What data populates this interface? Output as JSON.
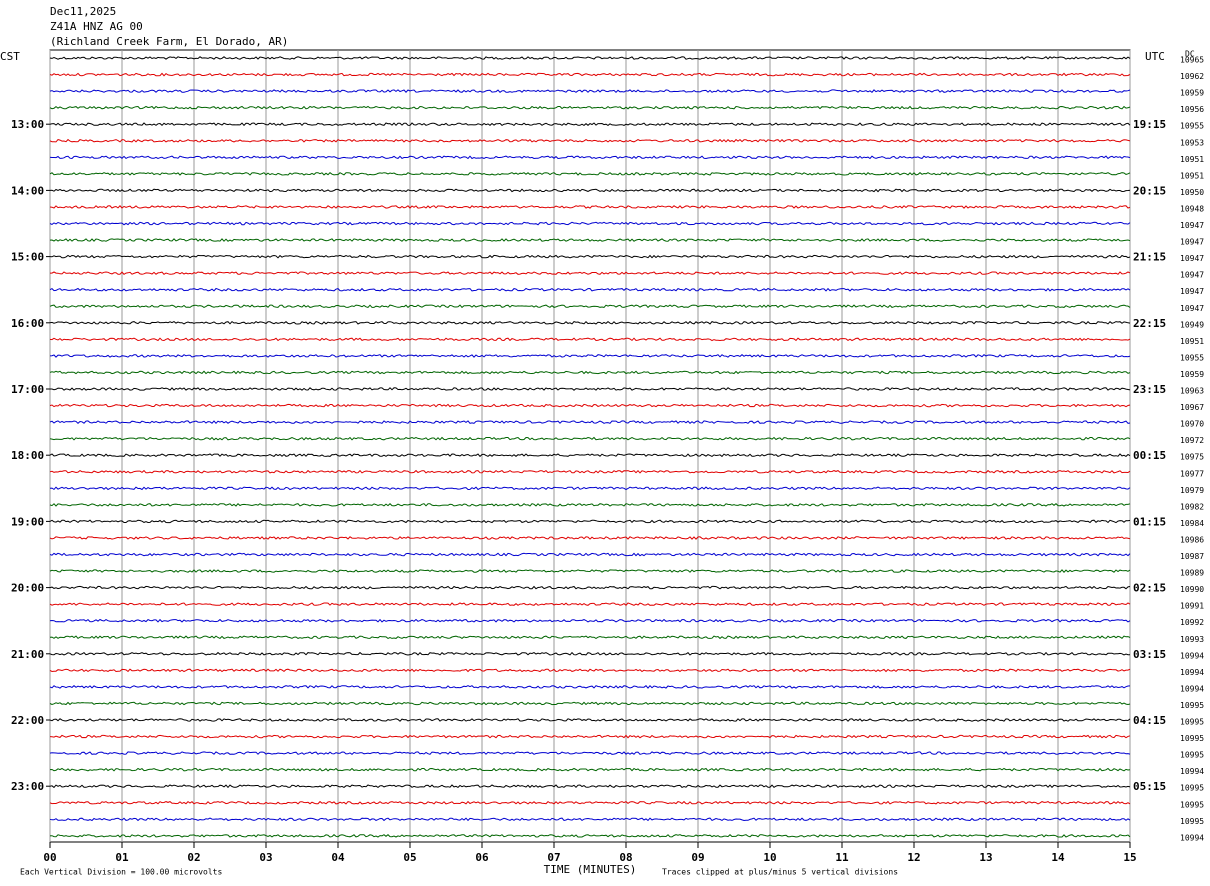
{
  "chart_data": {
    "type": "helicorder",
    "title_lines": [
      "Dec11,2025",
      "Z41A HNZ AG 00",
      "(Richland Creek Farm, El Dorado, AR)"
    ],
    "left_axis_label": "CST",
    "right_axis_label": "UTC",
    "dc_label": "DC",
    "x_label": "TIME (MINUTES)",
    "footer_left": "Each Vertical Division =  100.00 microvolts",
    "footer_right": "Traces clipped at plus/minus 5 vertical divisions",
    "xlim": [
      0,
      15
    ],
    "xticks": [
      {
        "value": 0,
        "label": "00"
      },
      {
        "value": 1,
        "label": "01"
      },
      {
        "value": 2,
        "label": "02"
      },
      {
        "value": 3,
        "label": "03"
      },
      {
        "value": 4,
        "label": "04"
      },
      {
        "value": 5,
        "label": "05"
      },
      {
        "value": 6,
        "label": "06"
      },
      {
        "value": 7,
        "label": "07"
      },
      {
        "value": 8,
        "label": "08"
      },
      {
        "value": 9,
        "label": "09"
      },
      10,
      11,
      12,
      13,
      14,
      15
    ],
    "colors": [
      "#000000",
      "#e00000",
      "#0000d0",
      "#006400"
    ],
    "cst_labels": [
      null,
      null,
      null,
      null,
      "13:00",
      null,
      null,
      null,
      "14:00",
      null,
      null,
      null,
      "15:00",
      null,
      null,
      null,
      "16:00",
      null,
      null,
      null,
      "17:00",
      null,
      null,
      null,
      "18:00",
      null,
      null,
      null,
      "19:00",
      null,
      null,
      null,
      "20:00",
      null,
      null,
      null,
      "21:00",
      null,
      null,
      null,
      "22:00",
      null,
      null,
      null,
      "23:00",
      null,
      null,
      null
    ],
    "utc_labels": [
      null,
      null,
      null,
      null,
      "19:15",
      null,
      null,
      null,
      "20:15",
      null,
      null,
      null,
      "21:15",
      null,
      null,
      null,
      "22:15",
      null,
      null,
      null,
      "23:15",
      null,
      null,
      null,
      "00:15",
      null,
      null,
      null,
      "01:15",
      null,
      null,
      null,
      "02:15",
      null,
      null,
      null,
      "03:15",
      null,
      null,
      null,
      "04:15",
      null,
      null,
      null,
      "05:15",
      null,
      null,
      null
    ],
    "dc_values": [
      10965,
      10962,
      10959,
      10956,
      10955,
      10953,
      10951,
      10951,
      10950,
      10948,
      10947,
      10947,
      10947,
      10947,
      10947,
      10947,
      10949,
      10951,
      10955,
      10959,
      10963,
      10967,
      10970,
      10972,
      10975,
      10977,
      10979,
      10982,
      10984,
      10986,
      10987,
      10989,
      10990,
      10991,
      10992,
      10993,
      10994,
      10994,
      10994,
      10995,
      10995,
      10995,
      10995,
      10994,
      10995,
      10995,
      10995,
      10994
    ]
  }
}
